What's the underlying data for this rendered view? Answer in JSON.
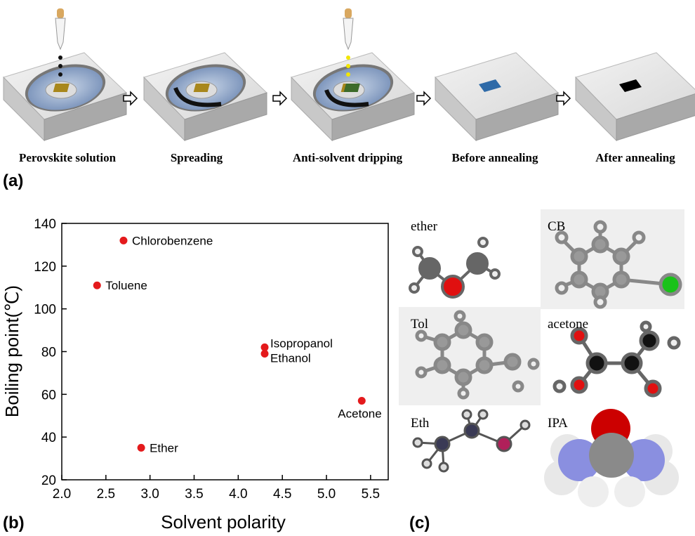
{
  "panel_a": {
    "label": "(a)",
    "steps": [
      "Perovskite solution",
      "Spreading",
      "Anti-solvent dripping",
      "Before annealing",
      "After annealing"
    ]
  },
  "panel_b": {
    "label": "(b)"
  },
  "panel_c": {
    "label": "(c)",
    "molecules": [
      "ether",
      "CB",
      "Tol",
      "acetone",
      "Eth",
      "IPA"
    ]
  },
  "chart_data": {
    "type": "scatter",
    "x_label": "Solvent polarity",
    "y_label": "Boiling point(℃)",
    "x": [
      2.7,
      2.4,
      4.3,
      4.3,
      5.4,
      2.9
    ],
    "values": [
      132,
      111,
      82,
      79,
      57,
      35
    ],
    "labels": [
      "Chlorobenzene",
      "Toluene",
      "Isopropanol",
      "Ethanol",
      "Acetone",
      "Ether"
    ],
    "color": "#e41a1c",
    "xlim": [
      2.0,
      5.7
    ],
    "ylim": [
      20,
      140
    ],
    "xticks": [
      {
        "value": 2,
        "label": "2.0"
      },
      {
        "value": 2.5,
        "label": "2.5"
      },
      {
        "value": 3,
        "label": "3.0"
      },
      {
        "value": 3.5,
        "label": "3.5"
      },
      {
        "value": 4,
        "label": "4.0"
      },
      {
        "value": 4.5,
        "label": "4.5"
      },
      {
        "value": 5,
        "label": "5.0"
      },
      {
        "value": 5.5,
        "label": "5.5"
      }
    ],
    "yticks": [
      20,
      40,
      60,
      80,
      100,
      120,
      140
    ]
  }
}
